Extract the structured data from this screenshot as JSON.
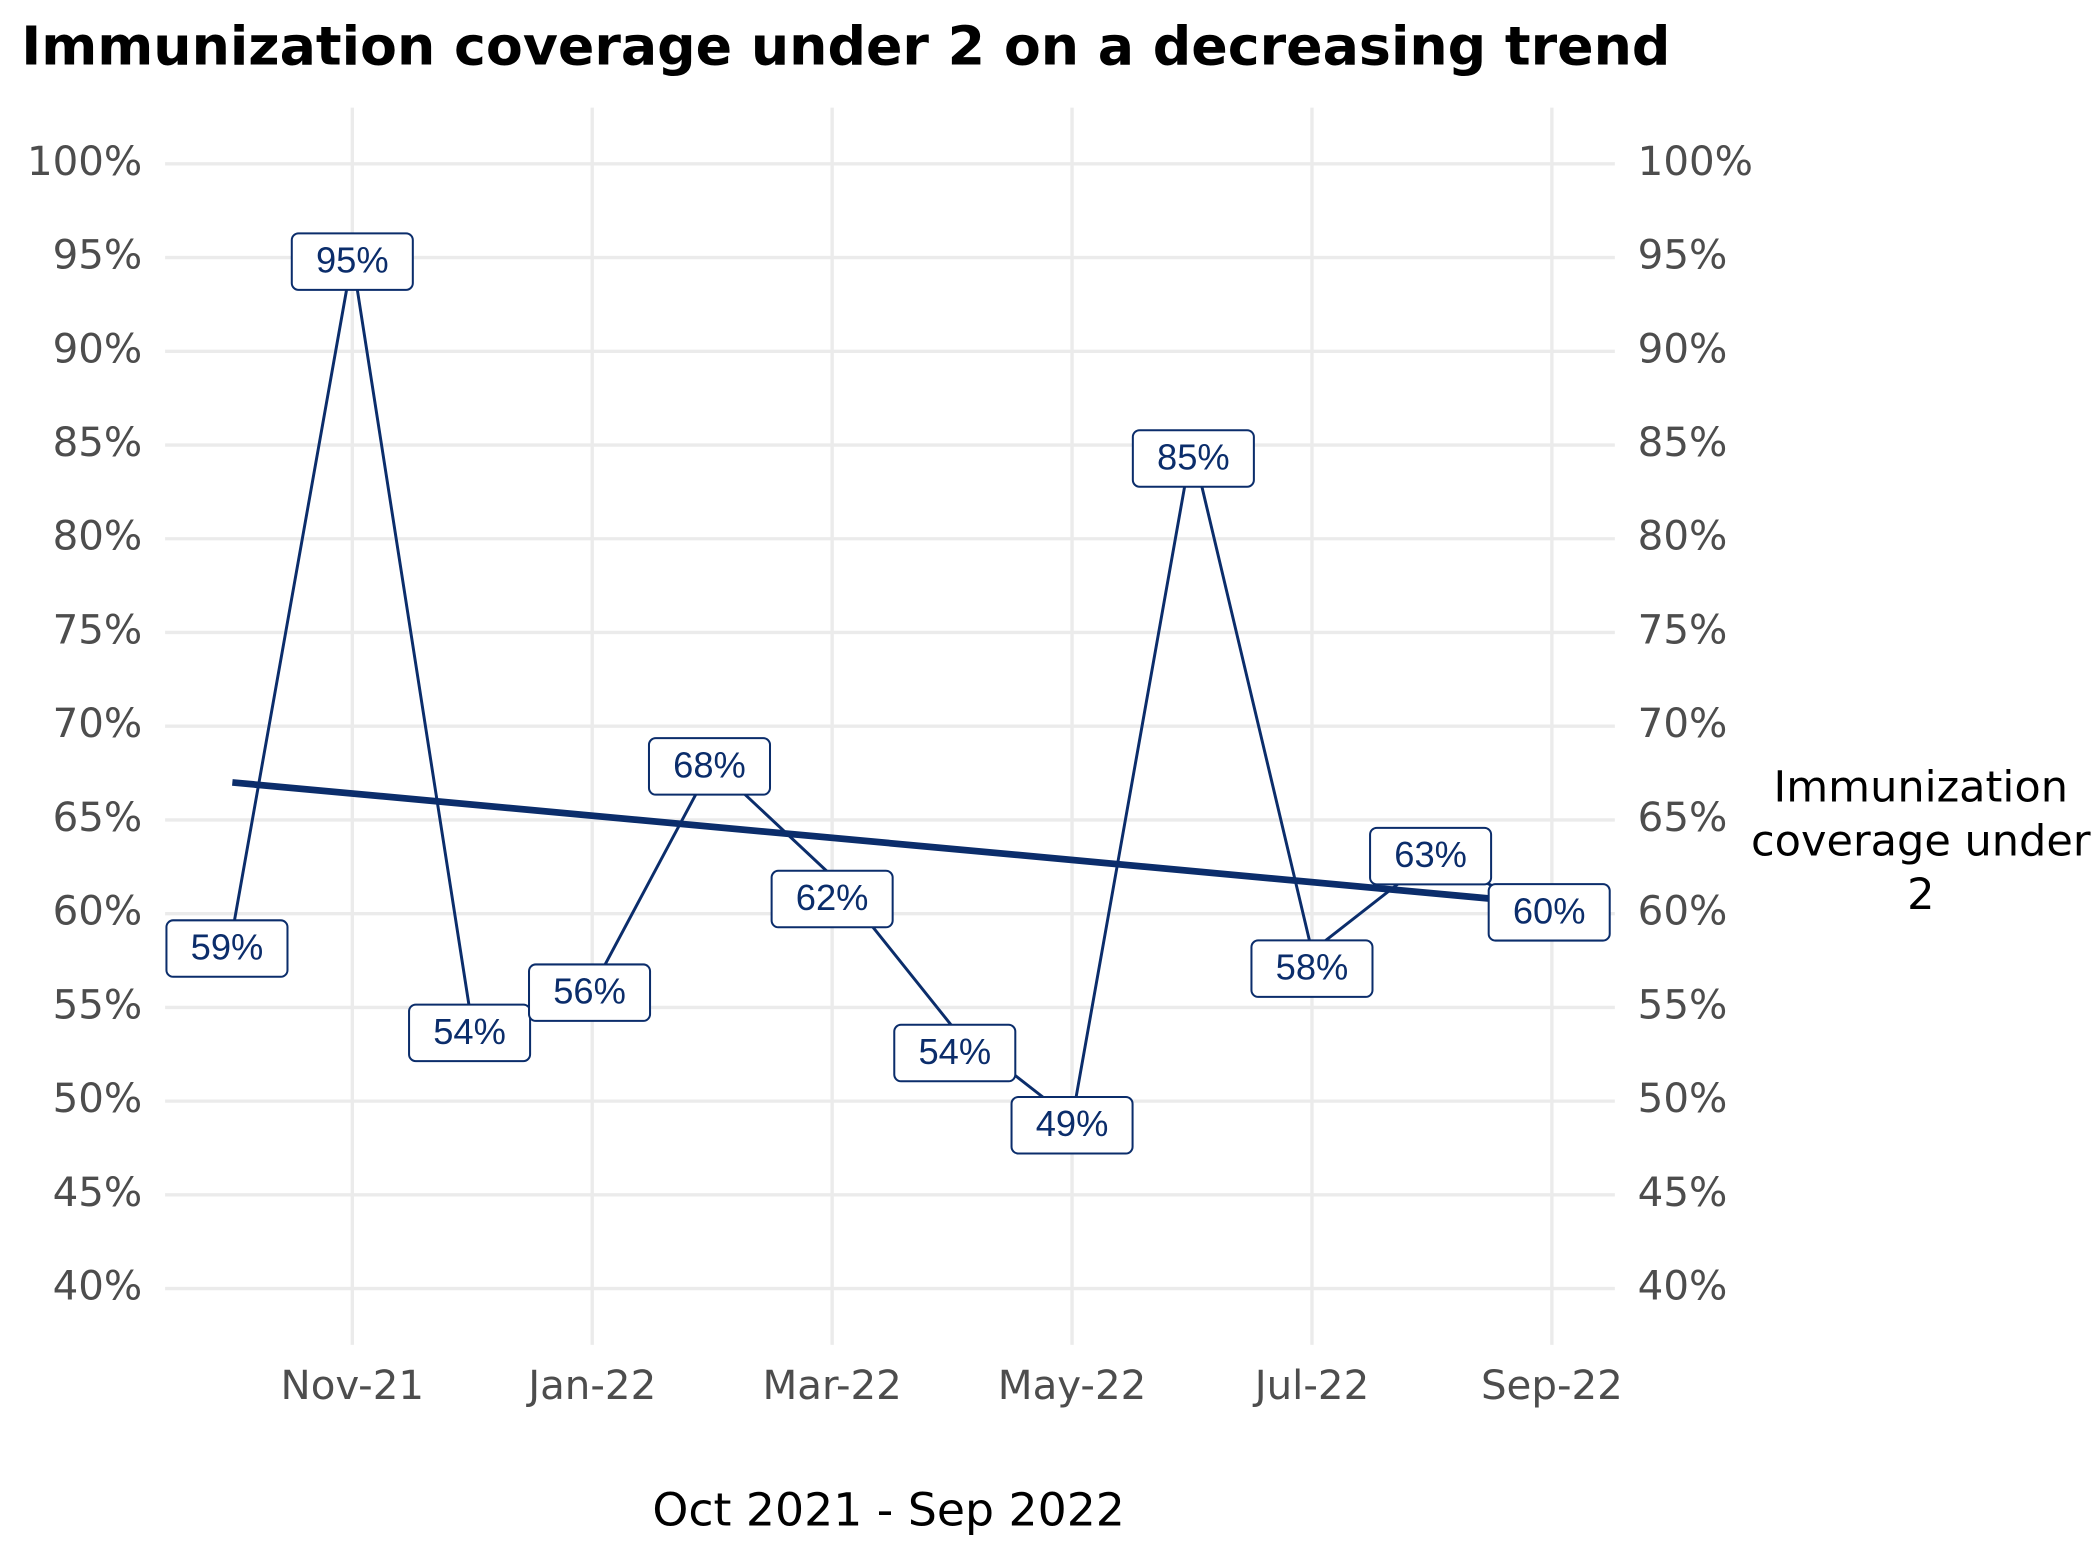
{
  "chart_data": {
    "type": "line",
    "title": "Immunization coverage under 2 on a decreasing trend",
    "x_label": "Oct 2021 - Sep 2022",
    "x": [
      "Oct-21",
      "Nov-21",
      "Dec-21",
      "Jan-22",
      "Feb-22",
      "Mar-22",
      "Apr-22",
      "May-22",
      "Jun-22",
      "Jul-22",
      "Aug-22",
      "Sep-22"
    ],
    "xticks": [
      "Nov-21",
      "Jan-22",
      "Mar-22",
      "May-22",
      "Jul-22",
      "Sep-22"
    ],
    "series": [
      {
        "name": "Immunization coverage under 2",
        "color": "#0b2d6b",
        "values": [
          59,
          95,
          54,
          56,
          68,
          62,
          54,
          49,
          85,
          58,
          63,
          60
        ],
        "value_labels": [
          "59%",
          "95%",
          "54%",
          "56%",
          "68%",
          "62%",
          "54%",
          "49%",
          "85%",
          "58%",
          "63%",
          "60%"
        ]
      }
    ],
    "trend": {
      "color": "#0b2d6b",
      "x": [
        "Oct-21",
        "Sep-22"
      ],
      "values": [
        67,
        60.5
      ]
    },
    "ylim": [
      37,
      103
    ],
    "yticks": [
      {
        "value": 40,
        "label": "40%"
      },
      {
        "value": 45,
        "label": "45%"
      },
      {
        "value": 50,
        "label": "50%"
      },
      {
        "value": 55,
        "label": "55%"
      },
      {
        "value": 60,
        "label": "60%"
      },
      {
        "value": 65,
        "label": "65%"
      },
      {
        "value": 70,
        "label": "70%"
      },
      {
        "value": 75,
        "label": "75%"
      },
      {
        "value": 80,
        "label": "80%"
      },
      {
        "value": 85,
        "label": "85%"
      },
      {
        "value": 90,
        "label": "90%"
      },
      {
        "value": 95,
        "label": "95%"
      },
      {
        "value": 100,
        "label": "100%"
      }
    ],
    "y2lim": [
      37,
      103
    ],
    "y2ticks": [
      {
        "value": 40,
        "label": "40%"
      },
      {
        "value": 45,
        "label": "45%"
      },
      {
        "value": 50,
        "label": "50%"
      },
      {
        "value": 55,
        "label": "55%"
      },
      {
        "value": 60,
        "label": "60%"
      },
      {
        "value": 65,
        "label": "65%"
      },
      {
        "value": 70,
        "label": "70%"
      },
      {
        "value": 75,
        "label": "75%"
      },
      {
        "value": 80,
        "label": "80%"
      },
      {
        "value": 85,
        "label": "85%"
      },
      {
        "value": 90,
        "label": "90%"
      },
      {
        "value": 95,
        "label": "95%"
      },
      {
        "value": 100,
        "label": "100%"
      }
    ],
    "grid": true
  }
}
